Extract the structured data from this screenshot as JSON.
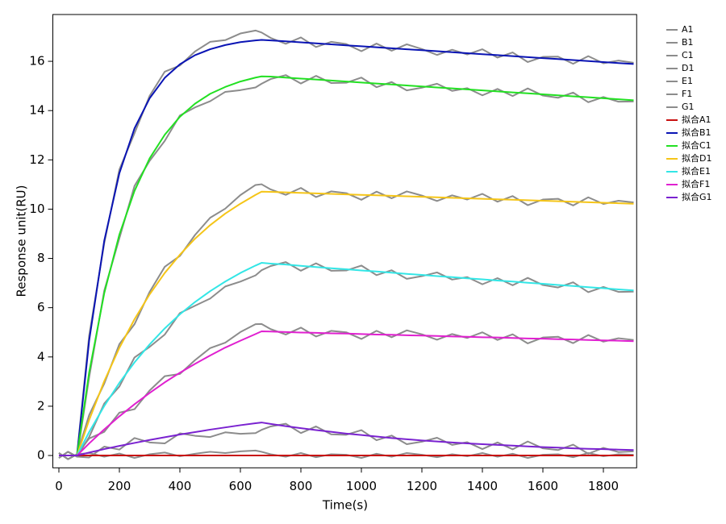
{
  "chart_data": {
    "type": "line",
    "xlabel": "Time(s)",
    "ylabel": "Response unit(RU)",
    "xlim": [
      -20,
      1910
    ],
    "ylim": [
      -0.5,
      17.9
    ],
    "xticks": [
      0,
      200,
      400,
      600,
      800,
      1000,
      1200,
      1400,
      1600,
      1800
    ],
    "yticks": [
      0,
      2,
      4,
      6,
      8,
      10,
      12,
      14,
      16
    ],
    "legend": "right-outside",
    "x": [
      0,
      30,
      60,
      100,
      150,
      200,
      250,
      300,
      350,
      400,
      450,
      500,
      550,
      600,
      650,
      670,
      700,
      750,
      800,
      850,
      900,
      950,
      1000,
      1050,
      1100,
      1150,
      1200,
      1250,
      1300,
      1350,
      1400,
      1450,
      1500,
      1550,
      1600,
      1650,
      1700,
      1750,
      1800,
      1850,
      1900
    ],
    "series": [
      {
        "name": "A1",
        "color": "#8c8c8c",
        "values": [
          0.1,
          -0.15,
          0.05,
          0.1,
          -0.05,
          0.08,
          -0.1,
          0.05,
          0.12,
          -0.03,
          0.07,
          0.15,
          0.1,
          0.17,
          0.2,
          0.15,
          0.05,
          -0.05,
          0.1,
          -0.07,
          0.05,
          0.03,
          -0.1,
          0.07,
          -0.05,
          0.1,
          0.03,
          -0.07,
          0.05,
          -0.03,
          0.1,
          -0.05,
          0.07,
          -0.1,
          0.03,
          0.05,
          -0.07,
          0.1,
          -0.03,
          0.05,
          0.03
        ]
      },
      {
        "name": "B1",
        "color": "#8c8c8c",
        "values": [
          0.1,
          -0.15,
          0.05,
          4.86,
          8.62,
          11.61,
          13.08,
          14.6,
          15.58,
          15.83,
          16.4,
          16.79,
          16.86,
          17.13,
          17.25,
          17.17,
          16.95,
          16.71,
          16.97,
          16.58,
          16.79,
          16.7,
          16.41,
          16.72,
          16.43,
          16.69,
          16.5,
          16.26,
          16.47,
          16.28,
          16.49,
          16.15,
          16.36,
          15.97,
          16.18,
          16.19,
          15.9,
          16.21,
          15.92,
          16.03,
          15.94
        ]
      },
      {
        "name": "C1",
        "color": "#8c8c8c",
        "values": [
          -0.1,
          0.15,
          -0.05,
          3.17,
          6.69,
          8.82,
          10.94,
          11.96,
          12.77,
          13.8,
          14.13,
          14.38,
          14.76,
          14.83,
          14.94,
          15.09,
          15.28,
          15.44,
          15.1,
          15.41,
          15.12,
          15.13,
          15.34,
          14.95,
          15.16,
          14.82,
          14.93,
          15.09,
          14.8,
          14.91,
          14.62,
          14.88,
          14.59,
          14.9,
          14.61,
          14.52,
          14.73,
          14.34,
          14.55,
          14.36,
          14.37
        ]
      },
      {
        "name": "D1",
        "color": "#8c8c8c",
        "values": [
          0.1,
          -0.15,
          0.05,
          1.64,
          2.92,
          4.52,
          5.33,
          6.64,
          7.66,
          8.1,
          8.95,
          9.65,
          10.02,
          10.57,
          10.98,
          11.01,
          10.8,
          10.58,
          10.86,
          10.49,
          10.72,
          10.65,
          10.38,
          10.71,
          10.44,
          10.72,
          10.55,
          10.33,
          10.56,
          10.39,
          10.62,
          10.3,
          10.53,
          10.16,
          10.39,
          10.42,
          10.15,
          10.48,
          10.21,
          10.34,
          10.27
        ]
      },
      {
        "name": "E1",
        "color": "#8c8c8c",
        "values": [
          -0.1,
          0.15,
          -0.05,
          0.75,
          2.11,
          2.8,
          3.98,
          4.41,
          4.91,
          5.78,
          6.08,
          6.37,
          6.86,
          7.06,
          7.31,
          7.52,
          7.69,
          7.85,
          7.5,
          7.8,
          7.5,
          7.51,
          7.71,
          7.32,
          7.52,
          7.17,
          7.28,
          7.43,
          7.14,
          7.24,
          6.95,
          7.2,
          6.91,
          7.21,
          6.92,
          6.82,
          7.03,
          6.63,
          6.84,
          6.64,
          6.65
        ]
      },
      {
        "name": "F1",
        "color": "#8c8c8c",
        "values": [
          0.1,
          -0.15,
          0.05,
          0.69,
          0.96,
          1.74,
          1.88,
          2.64,
          3.22,
          3.31,
          3.87,
          4.36,
          4.58,
          5.01,
          5.33,
          5.34,
          5.13,
          4.91,
          5.19,
          4.83,
          5.06,
          5.0,
          4.73,
          5.06,
          4.8,
          5.08,
          4.92,
          4.7,
          4.93,
          4.77,
          5.0,
          4.69,
          4.92,
          4.55,
          4.79,
          4.82,
          4.56,
          4.89,
          4.62,
          4.76,
          4.69
        ]
      },
      {
        "name": "G1",
        "color": "#8c8c8c",
        "values": [
          -0.1,
          0.15,
          -0.05,
          -0.08,
          0.36,
          0.24,
          0.71,
          0.53,
          0.49,
          0.9,
          0.8,
          0.75,
          0.94,
          0.88,
          0.91,
          1.04,
          1.18,
          1.29,
          0.91,
          1.18,
          0.86,
          0.84,
          1.03,
          0.62,
          0.81,
          0.46,
          0.56,
          0.72,
          0.43,
          0.54,
          0.26,
          0.53,
          0.25,
          0.57,
          0.29,
          0.22,
          0.44,
          0.07,
          0.31,
          0.14,
          0.17
        ]
      },
      {
        "name": "拟合A1",
        "color": "#c81010",
        "values": [
          0,
          0,
          0,
          0,
          0,
          0,
          0,
          0,
          0,
          0,
          0,
          0,
          0,
          0,
          0,
          0,
          0,
          0,
          0,
          0,
          0,
          0,
          0,
          0,
          0,
          0,
          0,
          0,
          0,
          0,
          0,
          0,
          0,
          0,
          0,
          0,
          0,
          0,
          0,
          0,
          0
        ]
      },
      {
        "name": "拟合B1",
        "color": "#0a14b4",
        "values": [
          0,
          0,
          0,
          4.66,
          8.72,
          11.46,
          13.28,
          14.5,
          15.33,
          15.88,
          16.25,
          16.49,
          16.66,
          16.78,
          16.85,
          16.87,
          16.85,
          16.81,
          16.77,
          16.73,
          16.69,
          16.65,
          16.61,
          16.57,
          16.53,
          16.49,
          16.45,
          16.41,
          16.37,
          16.33,
          16.29,
          16.25,
          16.21,
          16.17,
          16.13,
          16.09,
          16.05,
          16.01,
          15.97,
          15.93,
          15.89
        ]
      },
      {
        "name": "拟合C1",
        "color": "#22e022",
        "values": [
          0,
          0,
          0,
          3.37,
          6.59,
          8.97,
          10.74,
          12.06,
          13.02,
          13.75,
          14.28,
          14.68,
          14.96,
          15.18,
          15.34,
          15.39,
          15.38,
          15.34,
          15.3,
          15.26,
          15.22,
          15.18,
          15.14,
          15.1,
          15.06,
          15.02,
          14.98,
          14.94,
          14.9,
          14.86,
          14.82,
          14.78,
          14.74,
          14.7,
          14.66,
          14.62,
          14.58,
          14.54,
          14.5,
          14.46,
          14.42
        ]
      },
      {
        "name": "拟合D1",
        "color": "#f5c518",
        "values": [
          0,
          0,
          0,
          1.44,
          3.02,
          4.37,
          5.53,
          6.54,
          7.41,
          8.15,
          8.8,
          9.35,
          9.82,
          10.22,
          10.58,
          10.71,
          10.7,
          10.68,
          10.66,
          10.64,
          10.62,
          10.6,
          10.58,
          10.56,
          10.54,
          10.52,
          10.5,
          10.48,
          10.46,
          10.44,
          10.42,
          10.4,
          10.38,
          10.36,
          10.34,
          10.32,
          10.3,
          10.28,
          10.26,
          10.24,
          10.22
        ]
      },
      {
        "name": "拟合E1",
        "color": "#33e6e6",
        "values": [
          0,
          0,
          0,
          0.95,
          2.01,
          2.95,
          3.78,
          4.51,
          5.16,
          5.73,
          6.23,
          6.67,
          7.06,
          7.41,
          7.71,
          7.82,
          7.79,
          7.75,
          7.7,
          7.65,
          7.6,
          7.56,
          7.51,
          7.47,
          7.42,
          7.37,
          7.33,
          7.28,
          7.24,
          7.19,
          7.15,
          7.1,
          7.06,
          7.01,
          6.97,
          6.92,
          6.88,
          6.83,
          6.79,
          6.74,
          6.7
        ]
      },
      {
        "name": "拟合F1",
        "color": "#e020d0",
        "values": [
          0,
          0,
          0,
          0.49,
          1.06,
          1.59,
          2.08,
          2.54,
          2.97,
          3.36,
          3.72,
          4.06,
          4.38,
          4.66,
          4.93,
          5.04,
          5.03,
          5.01,
          4.99,
          4.98,
          4.96,
          4.95,
          4.93,
          4.91,
          4.9,
          4.88,
          4.87,
          4.85,
          4.83,
          4.82,
          4.8,
          4.79,
          4.77,
          4.75,
          4.74,
          4.72,
          4.71,
          4.69,
          4.67,
          4.66,
          4.64
        ]
      },
      {
        "name": "拟合G1",
        "color": "#7a22d0",
        "values": [
          0,
          0,
          0,
          0.12,
          0.26,
          0.39,
          0.51,
          0.63,
          0.74,
          0.85,
          0.95,
          1.05,
          1.14,
          1.23,
          1.31,
          1.34,
          1.28,
          1.19,
          1.11,
          1.03,
          0.96,
          0.89,
          0.83,
          0.77,
          0.71,
          0.66,
          0.61,
          0.57,
          0.53,
          0.49,
          0.46,
          0.43,
          0.4,
          0.37,
          0.34,
          0.32,
          0.29,
          0.27,
          0.26,
          0.24,
          0.22
        ]
      }
    ]
  }
}
